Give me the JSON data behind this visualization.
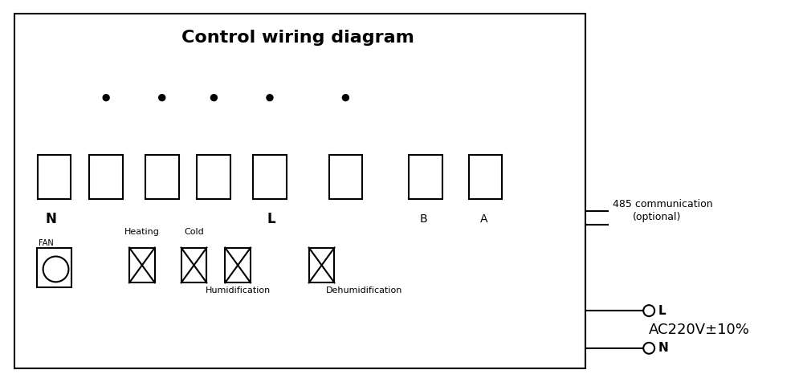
{
  "title": "Control wiring diagram",
  "title_fontsize": 16,
  "bg_color": "#ffffff",
  "line_color": "#000000",
  "text_color": "#000000",
  "fig_width": 10.0,
  "fig_height": 4.76,
  "dpi": 100,
  "comm_text1": "485 communication",
  "comm_text2": "(optional)",
  "ac_text": "AC220V±10%"
}
